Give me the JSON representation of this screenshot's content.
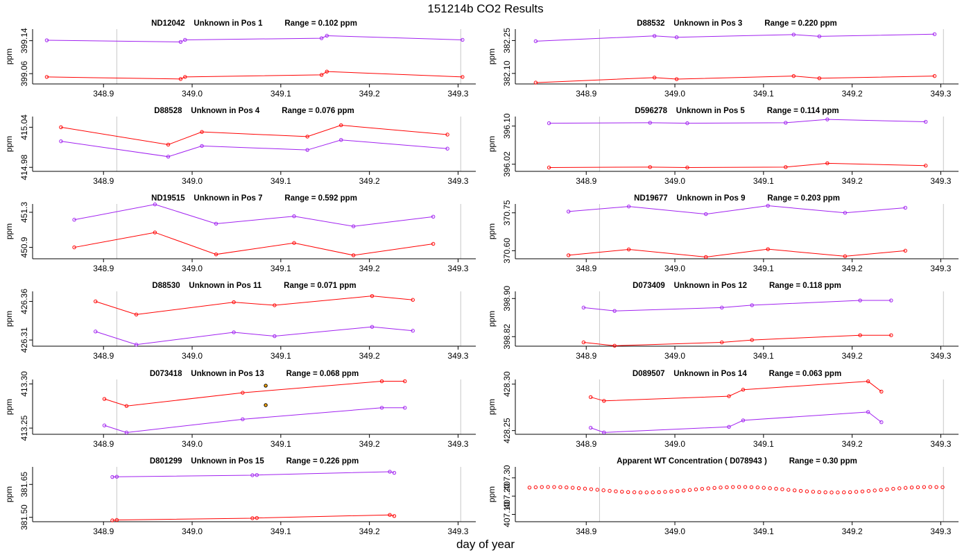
{
  "figure": {
    "title": "151214b  CO2 Results",
    "xlabel": "day of year"
  },
  "colors": {
    "red": "#ff0000",
    "purple": "#a020f0",
    "vline": "#c8c8c8",
    "axis": "#000000"
  },
  "chart_data": [
    {
      "type": "line",
      "title_parts": [
        "ND12042",
        "Unknown in Pos 1",
        "Range =  0.102 ppm"
      ],
      "ylabel": "ppm",
      "xlim": [
        348.82,
        349.32
      ],
      "ylim": [
        399.035,
        399.168
      ],
      "yticks": [
        399.06,
        399.14
      ],
      "ytick_labels": [
        "399.06",
        "399.14"
      ],
      "xticks": [
        348.9,
        349.0,
        349.1,
        349.2,
        349.3
      ],
      "xtick_labels": [
        "348.9",
        "349.0",
        "349.1",
        "349.2",
        "349.3"
      ],
      "vlines": [
        348.915,
        349.303
      ],
      "series": [
        {
          "name": "purple",
          "x": [
            348.836,
            348.987,
            348.992,
            349.146,
            349.152,
            349.305
          ],
          "y": [
            399.141,
            399.137,
            399.142,
            399.146,
            399.152,
            399.142
          ]
        },
        {
          "name": "red",
          "x": [
            348.836,
            348.987,
            348.992,
            349.146,
            349.152,
            349.305
          ],
          "y": [
            399.052,
            399.047,
            399.052,
            399.057,
            399.065,
            399.052
          ]
        }
      ]
    },
    {
      "type": "line",
      "title_parts": [
        "D88532",
        "Unknown in Pos 3",
        "Range =  0.220 ppm"
      ],
      "ylabel": "ppm",
      "xlim": [
        348.82,
        349.32
      ],
      "ylim": [
        382.052,
        382.302
      ],
      "yticks": [
        382.1,
        382.25
      ],
      "ytick_labels": [
        "382.10",
        "382.25"
      ],
      "xticks": [
        348.9,
        349.0,
        349.1,
        349.2,
        349.3
      ],
      "xtick_labels": [
        "348.9",
        "349.0",
        "349.1",
        "349.2",
        "349.3"
      ],
      "vlines": [
        348.915,
        349.303
      ],
      "series": [
        {
          "name": "purple",
          "x": [
            348.843,
            348.977,
            349.002,
            349.134,
            349.163,
            349.293
          ],
          "y": [
            382.247,
            382.271,
            382.265,
            382.277,
            382.269,
            382.279
          ]
        },
        {
          "name": "red",
          "x": [
            348.843,
            348.977,
            349.002,
            349.134,
            349.163,
            349.293
          ],
          "y": [
            382.058,
            382.081,
            382.074,
            382.088,
            382.078,
            382.088
          ]
        }
      ]
    },
    {
      "type": "line",
      "title_parts": [
        "D88528",
        "Unknown in Pos 4",
        "Range =  0.076 ppm"
      ],
      "ylabel": "ppm",
      "xlim": [
        348.82,
        349.32
      ],
      "ylim": [
        414.974,
        415.056
      ],
      "yticks": [
        414.98,
        415.04
      ],
      "ytick_labels": [
        "414.98",
        "415.04"
      ],
      "xticks": [
        348.9,
        349.0,
        349.1,
        349.2,
        349.3
      ],
      "xtick_labels": [
        "348.9",
        "349.0",
        "349.1",
        "349.2",
        "349.3"
      ],
      "vlines": [
        348.915,
        349.303
      ],
      "series": [
        {
          "name": "red",
          "x": [
            348.852,
            348.973,
            349.011,
            349.13,
            349.168,
            349.288
          ],
          "y": [
            415.04,
            415.014,
            415.033,
            415.026,
            415.043,
            415.029
          ]
        },
        {
          "name": "purple",
          "x": [
            348.852,
            348.973,
            349.011,
            349.13,
            349.168,
            349.288
          ],
          "y": [
            415.019,
            414.996,
            415.012,
            415.006,
            415.021,
            415.008
          ]
        }
      ]
    },
    {
      "type": "line",
      "title_parts": [
        "D596278",
        "Unknown in Pos 5",
        "Range =  0.114 ppm"
      ],
      "ylabel": "ppm",
      "xlim": [
        348.82,
        349.32
      ],
      "ylim": [
        396.005,
        396.12
      ],
      "yticks": [
        396.02,
        396.1
      ],
      "ytick_labels": [
        "396.02",
        "396.10"
      ],
      "xticks": [
        348.9,
        349.0,
        349.1,
        349.2,
        349.3
      ],
      "xtick_labels": [
        "348.9",
        "349.0",
        "349.1",
        "349.2",
        "349.3"
      ],
      "vlines": [
        348.915,
        349.303
      ],
      "series": [
        {
          "name": "purple",
          "x": [
            348.858,
            348.972,
            349.014,
            349.125,
            349.172,
            349.283
          ],
          "y": [
            396.106,
            396.107,
            396.106,
            396.107,
            396.114,
            396.109
          ]
        },
        {
          "name": "red",
          "x": [
            348.858,
            348.972,
            349.014,
            349.125,
            349.172,
            349.283
          ],
          "y": [
            396.013,
            396.014,
            396.013,
            396.014,
            396.022,
            396.017
          ]
        }
      ]
    },
    {
      "type": "line",
      "title_parts": [
        "ND19515",
        "Unknown in Pos 7",
        "Range =  0.592 ppm"
      ],
      "ylabel": "ppm",
      "xlim": [
        348.82,
        349.32
      ],
      "ylim": [
        450.77,
        451.395
      ],
      "yticks": [
        450.9,
        451.3
      ],
      "ytick_labels": [
        "450.9",
        "451.3"
      ],
      "xticks": [
        348.9,
        349.0,
        349.1,
        349.2,
        349.3
      ],
      "xtick_labels": [
        "348.9",
        "349.0",
        "349.1",
        "349.2",
        "349.3"
      ],
      "vlines": [
        348.915,
        349.303
      ],
      "series": [
        {
          "name": "purple",
          "x": [
            348.867,
            348.958,
            349.027,
            349.115,
            349.182,
            349.272
          ],
          "y": [
            451.215,
            451.39,
            451.17,
            451.255,
            451.14,
            451.25
          ]
        },
        {
          "name": "red",
          "x": [
            348.867,
            348.958,
            349.027,
            349.115,
            349.182,
            349.272
          ],
          "y": [
            450.9,
            451.07,
            450.82,
            450.95,
            450.81,
            450.94
          ]
        }
      ]
    },
    {
      "type": "line",
      "title_parts": [
        "ND19677",
        "Unknown in Pos 9",
        "Range =  0.203 ppm"
      ],
      "ylabel": "ppm",
      "xlim": [
        348.82,
        349.32
      ],
      "ylim": [
        370.568,
        370.785
      ],
      "yticks": [
        370.6,
        370.75
      ],
      "ytick_labels": [
        "370.60",
        "370.75"
      ],
      "xticks": [
        348.9,
        349.0,
        349.1,
        349.2,
        349.3
      ],
      "xtick_labels": [
        "348.9",
        "349.0",
        "349.1",
        "349.2",
        "349.3"
      ],
      "vlines": [
        348.915,
        349.303
      ],
      "series": [
        {
          "name": "purple",
          "x": [
            348.88,
            348.948,
            349.035,
            349.105,
            349.192,
            349.26
          ],
          "y": [
            370.755,
            370.775,
            370.745,
            370.778,
            370.75,
            370.77
          ]
        },
        {
          "name": "red",
          "x": [
            348.88,
            348.948,
            349.035,
            349.105,
            349.192,
            349.26
          ],
          "y": [
            370.582,
            370.605,
            370.575,
            370.606,
            370.578,
            370.6
          ]
        }
      ]
    },
    {
      "type": "line",
      "title_parts": [
        "D88530",
        "Unknown in Pos 11",
        "Range =  0.071 ppm"
      ],
      "ylabel": "ppm",
      "xlim": [
        348.82,
        349.32
      ],
      "ylim": [
        426.302,
        426.373
      ],
      "yticks": [
        426.31,
        426.36
      ],
      "ytick_labels": [
        "426.31",
        "426.36"
      ],
      "xticks": [
        348.9,
        349.0,
        349.1,
        349.2,
        349.3
      ],
      "xtick_labels": [
        "348.9",
        "349.0",
        "349.1",
        "349.2",
        "349.3"
      ],
      "vlines": [
        348.915,
        349.303
      ],
      "series": [
        {
          "name": "red",
          "x": [
            348.891,
            348.937,
            349.047,
            349.093,
            349.203,
            349.249
          ],
          "y": [
            426.36,
            426.343,
            426.359,
            426.355,
            426.367,
            426.362
          ]
        },
        {
          "name": "purple",
          "x": [
            348.891,
            348.937,
            349.047,
            349.093,
            349.203,
            349.249
          ],
          "y": [
            426.321,
            426.304,
            426.32,
            426.315,
            426.327,
            426.322
          ]
        }
      ]
    },
    {
      "type": "line",
      "title_parts": [
        "D073409",
        "Unknown in Pos 12",
        "Range =  0.118 ppm"
      ],
      "ylabel": "ppm",
      "xlim": [
        348.82,
        349.32
      ],
      "ylim": [
        398.8,
        398.915
      ],
      "yticks": [
        398.82,
        398.9
      ],
      "ytick_labels": [
        "398.82",
        "398.90"
      ],
      "xticks": [
        348.9,
        349.0,
        349.1,
        349.2,
        349.3
      ],
      "xtick_labels": [
        "348.9",
        "349.0",
        "349.1",
        "349.2",
        "349.3"
      ],
      "vlines": [
        348.915,
        349.303
      ],
      "series": [
        {
          "name": "purple",
          "x": [
            348.897,
            348.932,
            349.053,
            349.087,
            349.209,
            349.244
          ],
          "y": [
            398.881,
            398.874,
            398.881,
            398.886,
            398.896,
            398.896
          ]
        },
        {
          "name": "red",
          "x": [
            348.897,
            348.932,
            349.053,
            349.087,
            349.209,
            349.244
          ],
          "y": [
            398.808,
            398.801,
            398.808,
            398.813,
            398.823,
            398.823
          ]
        }
      ]
    },
    {
      "type": "line",
      "title_parts": [
        "D073418",
        "Unknown in Pos 13",
        "Range =  0.068 ppm"
      ],
      "ylabel": "ppm",
      "xlim": [
        348.82,
        349.32
      ],
      "ylim": [
        413.243,
        413.305
      ],
      "yticks": [
        413.25,
        413.3
      ],
      "ytick_labels": [
        "413.25",
        "413.30"
      ],
      "xticks": [
        348.9,
        349.0,
        349.1,
        349.2,
        349.3
      ],
      "xtick_labels": [
        "348.9",
        "349.0",
        "349.1",
        "349.2",
        "349.3"
      ],
      "vlines": [
        348.915,
        349.303
      ],
      "series": [
        {
          "name": "red",
          "x": [
            348.901,
            348.926,
            349.057,
            349.214,
            349.24
          ],
          "y": [
            413.283,
            413.275,
            413.29,
            413.303,
            413.303
          ]
        },
        {
          "name": "purple",
          "x": [
            348.901,
            348.926,
            349.057,
            349.214,
            349.24
          ],
          "y": [
            413.253,
            413.245,
            413.26,
            413.273,
            413.273
          ]
        }
      ],
      "extra_points": [
        {
          "x": 349.083,
          "y": 413.298
        },
        {
          "x": 349.083,
          "y": 413.276
        }
      ]
    },
    {
      "type": "line",
      "title_parts": [
        "D089507",
        "Unknown in Pos 14",
        "Range =  0.063 ppm"
      ],
      "ylabel": "ppm",
      "xlim": [
        348.82,
        349.32
      ],
      "ylim": [
        428.246,
        428.305
      ],
      "yticks": [
        428.25,
        428.3
      ],
      "ytick_labels": [
        "428.25",
        "428.30"
      ],
      "xticks": [
        348.9,
        349.0,
        349.1,
        349.2,
        349.3
      ],
      "xtick_labels": [
        "348.9",
        "349.0",
        "349.1",
        "349.2",
        "349.3"
      ],
      "vlines": [
        348.915,
        349.303
      ],
      "series": [
        {
          "name": "red",
          "x": [
            348.905,
            348.92,
            349.061,
            349.077,
            349.218,
            349.233
          ],
          "y": [
            428.286,
            428.282,
            428.287,
            428.294,
            428.303,
            428.292
          ]
        },
        {
          "name": "purple",
          "x": [
            348.905,
            348.92,
            349.061,
            349.077,
            349.218,
            349.233
          ],
          "y": [
            428.253,
            428.248,
            428.254,
            428.261,
            428.27,
            428.259
          ]
        }
      ]
    },
    {
      "type": "line",
      "title_parts": [
        "D801299",
        "Unknown in Pos 15",
        "Range =  0.226 ppm"
      ],
      "ylabel": "ppm",
      "xlim": [
        348.82,
        349.32
      ],
      "ylim": [
        381.48,
        381.73
      ],
      "yticks": [
        381.5,
        381.65
      ],
      "ytick_labels": [
        "381.50",
        "381.65"
      ],
      "xticks": [
        348.9,
        349.0,
        349.1,
        349.2,
        349.3
      ],
      "xtick_labels": [
        "348.9",
        "349.0",
        "349.1",
        "349.2",
        "349.3"
      ],
      "vlines": [
        348.915,
        349.303
      ],
      "series": [
        {
          "name": "purple",
          "x": [
            348.91,
            348.915,
            349.068,
            349.073,
            349.223,
            349.228
          ],
          "y": [
            381.684,
            381.685,
            381.692,
            381.693,
            381.708,
            381.703
          ]
        },
        {
          "name": "red",
          "x": [
            348.91,
            348.915,
            349.068,
            349.073,
            349.223,
            349.228
          ],
          "y": [
            381.486,
            381.488,
            381.496,
            381.497,
            381.511,
            381.506
          ]
        }
      ]
    },
    {
      "type": "scatter",
      "title_parts": [
        "Apparent WT Concentration ( D078943 )",
        "Range = 0.30 ppm"
      ],
      "ylabel": "ppm",
      "xlim": [
        348.82,
        349.32
      ],
      "ylim": [
        407.06,
        407.36
      ],
      "yticks": [
        407.1,
        407.2,
        407.3
      ],
      "ytick_labels": [
        "407.10",
        "407.20",
        "407.30"
      ],
      "xticks": [
        348.9,
        349.0,
        349.1,
        349.2,
        349.3
      ],
      "xtick_labels": [
        "348.9",
        "349.0",
        "349.1",
        "349.2",
        "349.3"
      ],
      "vlines": [
        348.915,
        349.303
      ],
      "wave": {
        "x_start": 348.836,
        "x_end": 349.302,
        "n": 68,
        "base": 407.235,
        "amp": 0.015,
        "period": 0.215,
        "phase_x": 348.966
      }
    }
  ]
}
